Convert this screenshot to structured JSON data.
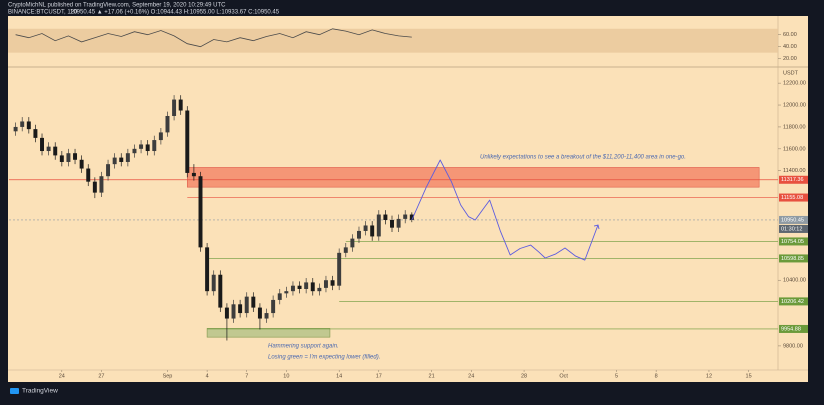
{
  "header": {
    "author_line": "CryptoMichNL published on TradingView.com, September 19, 2020 10:29:49 UTC",
    "symbol": "BINANCE:BTCUSDT, 120",
    "quote": "10950.45 ▲ +17.06 (+0.16%) O:10944.43 H:10955.00 L:10933.67 C:10950.45"
  },
  "footer": {
    "logo": "TradingView"
  },
  "chart_data": [
    {
      "type": "line",
      "color": "#4a4a4a",
      "band": [
        30,
        70
      ],
      "band_color": "#e8c79a",
      "x": [
        0.5,
        1.5,
        2.5,
        3.5,
        4.5,
        5.5,
        6.5,
        7.5,
        8.5,
        9.5,
        10.5,
        11.5,
        12.5,
        13.5,
        14.5,
        15.5,
        16.5,
        17.5,
        18.5,
        19.5,
        20.5,
        21.5,
        22.5,
        23.5,
        24.5,
        25.5,
        26.5,
        27.5,
        28.5,
        29.5,
        30.5
      ],
      "values": [
        60,
        55,
        62,
        50,
        58,
        48,
        55,
        62,
        57,
        65,
        60,
        67,
        58,
        45,
        40,
        52,
        48,
        55,
        50,
        57,
        62,
        55,
        65,
        60,
        70,
        66,
        60,
        68,
        62,
        58,
        56
      ],
      "xlim": [
        0,
        58
      ],
      "ylim": [
        11,
        88
      ],
      "yticks": [
        {
          "value": 60,
          "label": "60.00"
        },
        {
          "value": 40,
          "label": "40.00"
        },
        {
          "value": 20,
          "label": "20.00"
        }
      ]
    },
    {
      "type": "candlestick",
      "up_color": "#3d3d3d",
      "down_color": "#1a1a1a",
      "axis_unit": "USDT",
      "countdown": "01:30:12",
      "xlim": [
        0,
        58
      ],
      "ylim": [
        9580,
        12320
      ],
      "xticks": [
        {
          "value": 4,
          "label": "24"
        },
        {
          "value": 7,
          "label": "27"
        },
        {
          "value": 12,
          "label": "Sep"
        },
        {
          "value": 15,
          "label": "4"
        },
        {
          "value": 18,
          "label": "7"
        },
        {
          "value": 21,
          "label": "10"
        },
        {
          "value": 25,
          "label": "14"
        },
        {
          "value": 28,
          "label": "17"
        },
        {
          "value": 32,
          "label": "21"
        },
        {
          "value": 35,
          "label": "24"
        },
        {
          "value": 39,
          "label": "28"
        },
        {
          "value": 42,
          "label": "Oct"
        },
        {
          "value": 46,
          "label": "5"
        },
        {
          "value": 49,
          "label": "8"
        },
        {
          "value": 53,
          "label": "12"
        },
        {
          "value": 56,
          "label": "15"
        }
      ],
      "yticks": [
        {
          "value": 12200,
          "label": "12200.00"
        },
        {
          "value": 12000,
          "label": "12000.00"
        },
        {
          "value": 11800,
          "label": "11800.00"
        },
        {
          "value": 11600,
          "label": "11600.00"
        },
        {
          "value": 11400,
          "label": "11400.00"
        },
        {
          "value": 10400,
          "label": "10400.00"
        },
        {
          "value": 9800,
          "label": "9800.00"
        }
      ],
      "x": [
        0.5,
        1,
        1.5,
        2,
        2.5,
        3,
        3.5,
        4,
        4.5,
        5,
        5.5,
        6,
        6.5,
        7,
        7.5,
        8,
        8.5,
        9,
        9.5,
        10,
        10.5,
        11,
        11.5,
        12,
        12.5,
        13,
        13.5,
        14,
        14.5,
        15,
        15.5,
        16,
        16.5,
        17,
        17.5,
        18,
        18.5,
        19,
        19.5,
        20,
        20.5,
        21,
        21.5,
        22,
        22.5,
        23,
        23.5,
        24,
        24.5,
        25,
        25.5,
        26,
        26.5,
        27,
        27.5,
        28,
        28.5,
        29,
        29.5,
        30,
        30.5
      ],
      "open": [
        11760,
        11800,
        11850,
        11780,
        11700,
        11580,
        11620,
        11540,
        11480,
        11560,
        11500,
        11420,
        11300,
        11200,
        11350,
        11460,
        11520,
        11480,
        11560,
        11600,
        11640,
        11580,
        11680,
        11750,
        11900,
        12050,
        11950,
        11380,
        11350,
        10700,
        10300,
        10450,
        10150,
        10050,
        10180,
        10100,
        10250,
        10150,
        10050,
        10100,
        10220,
        10280,
        10300,
        10350,
        10320,
        10380,
        10300,
        10330,
        10400,
        10350,
        10650,
        10700,
        10780,
        10850,
        10900,
        10800,
        11000,
        10950,
        10880,
        10960,
        11000
      ],
      "high": [
        11840,
        11890,
        11890,
        11820,
        11740,
        11660,
        11660,
        11580,
        11600,
        11600,
        11540,
        11460,
        11340,
        11390,
        11500,
        11560,
        11560,
        11600,
        11640,
        11680,
        11680,
        11720,
        11790,
        11940,
        12090,
        12090,
        11990,
        11460,
        11390,
        10740,
        10490,
        10490,
        10190,
        10220,
        10220,
        10290,
        10290,
        10190,
        10140,
        10260,
        10320,
        10340,
        10390,
        10390,
        10420,
        10420,
        10370,
        10440,
        10440,
        10690,
        10740,
        10820,
        10890,
        10940,
        10940,
        11040,
        11040,
        10990,
        11000,
        11040,
        11020
      ],
      "low": [
        11720,
        11760,
        11740,
        11660,
        11540,
        11540,
        11500,
        11440,
        11440,
        11460,
        11380,
        11260,
        11150,
        11160,
        11310,
        11420,
        11440,
        11440,
        11520,
        11560,
        11540,
        11540,
        11640,
        11710,
        11860,
        11910,
        11340,
        11310,
        10660,
        10260,
        10260,
        10110,
        9850,
        10010,
        10060,
        10060,
        10110,
        9950,
        10010,
        10060,
        10180,
        10240,
        10260,
        10280,
        10280,
        10260,
        10260,
        10290,
        10310,
        10310,
        10610,
        10660,
        10740,
        10810,
        10760,
        10760,
        10910,
        10840,
        10840,
        10920,
        10930
      ],
      "close": [
        11800,
        11850,
        11780,
        11700,
        11580,
        11620,
        11540,
        11480,
        11560,
        11500,
        11420,
        11300,
        11200,
        11350,
        11460,
        11520,
        11480,
        11560,
        11600,
        11640,
        11580,
        11680,
        11750,
        11900,
        12050,
        11950,
        11380,
        11350,
        10700,
        10300,
        10450,
        10150,
        10050,
        10180,
        10100,
        10250,
        10150,
        10050,
        10100,
        10220,
        10280,
        10300,
        10350,
        10320,
        10380,
        10300,
        10330,
        10400,
        10350,
        10650,
        10700,
        10780,
        10850,
        10900,
        10800,
        11000,
        10950,
        10880,
        10960,
        11000,
        10950.45
      ],
      "forecast": {
        "color": "#5c5ce0",
        "x": [
          30.5,
          31.6,
          32.65,
          33.5,
          34.2,
          34.8,
          35.3,
          35.9,
          36.4,
          37.2,
          37.95,
          38.7,
          39.5,
          40.1,
          40.6,
          41.4,
          42.1,
          42.9,
          43.6,
          44.6
        ],
        "values": [
          10950,
          11250,
          11498,
          11300,
          11087,
          10980,
          10950,
          11050,
          11132,
          10850,
          10630,
          10690,
          10721,
          10660,
          10603,
          10640,
          10694,
          10620,
          10584,
          10904
        ]
      },
      "zones": [
        {
          "low": 11250,
          "high": 11430,
          "from": 13.5,
          "to": 56.8,
          "color": "#f4896b",
          "border": "#d9473a"
        },
        {
          "low": 9880,
          "high": 9960,
          "from": 15,
          "to": 24.3,
          "color": "#b8c48a",
          "border": "#6b8b3a"
        }
      ],
      "levels": [
        {
          "value": 11317.36,
          "from": 0,
          "color": "#e8503f"
        },
        {
          "value": 11155.08,
          "from": 13.5,
          "color": "#e8503f"
        },
        {
          "value": 10950.45,
          "from": 0,
          "color": "#8f9aa3",
          "dashed": true
        },
        {
          "value": 10754.05,
          "from": 25.5,
          "color": "#6b9a3a"
        },
        {
          "value": 10598.85,
          "from": 15,
          "color": "#6b9a3a"
        },
        {
          "value": 10206.42,
          "from": 25,
          "color": "#6b9a3a"
        },
        {
          "value": 9954.88,
          "from": 15,
          "color": "#6b9a3a"
        }
      ],
      "annotations": [
        "Unlikely expectations to see a breakout of the $11,200-11,400 area in one-go.",
        "Hammering support again.",
        "Losing green = I'm expecting lower (filled)."
      ]
    }
  ]
}
